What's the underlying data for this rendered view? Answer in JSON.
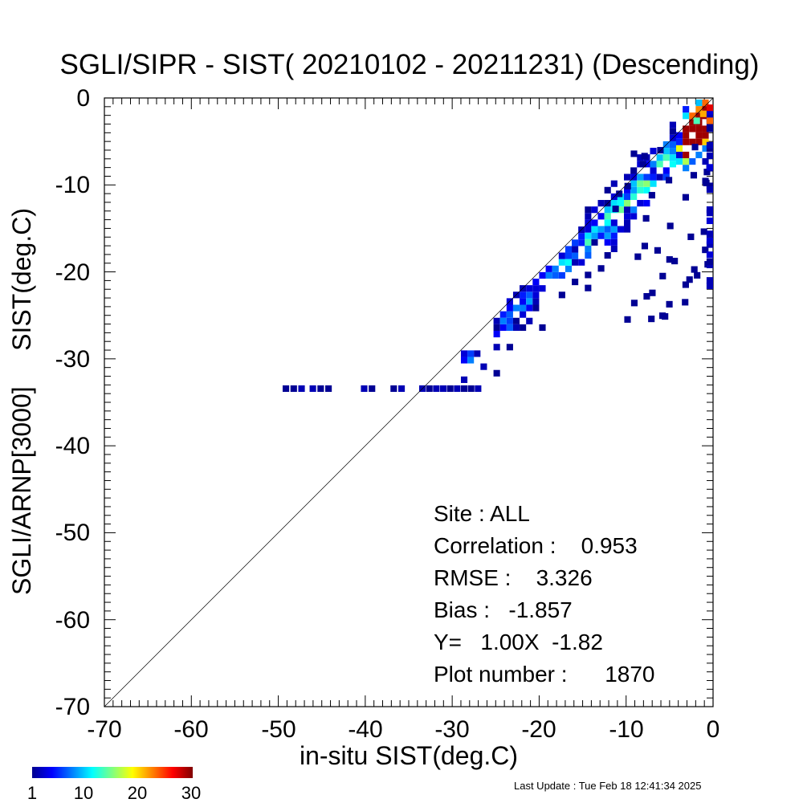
{
  "chart_data": {
    "type": "heatmap",
    "title": "SGLI/SIPR - SIST( 20210102 - 20211231) (Descending)",
    "xlabel": "in-situ SIST(deg.C)",
    "ylabel": "SGLI/ARNP[3000]     SIST(deg.C)",
    "xlim": [
      -70,
      0
    ],
    "ylim": [
      -70,
      0
    ],
    "x_ticks": [
      "-70",
      "-60",
      "-50",
      "-40",
      "-30",
      "-20",
      "-10",
      "0"
    ],
    "y_ticks": [
      "0",
      "-10",
      "-20",
      "-30",
      "-40",
      "-50",
      "-60",
      "-70"
    ],
    "reference_line": "1:1",
    "colorbar": {
      "ticks": [
        "1",
        "10",
        "20",
        "30"
      ],
      "range": [
        1,
        30
      ],
      "colormap": "jet"
    },
    "stats": {
      "site": "Site : ALL",
      "correlation": "Correlation :    0.953",
      "rmse": "RMSE :    3.326",
      "bias": "Bias :   -1.857",
      "regression": "Y=   1.00X  -1.82",
      "plot_number": "Plot number :      1870"
    },
    "footer": "Last Update : Tue Feb 18 12:41:34 2025"
  }
}
